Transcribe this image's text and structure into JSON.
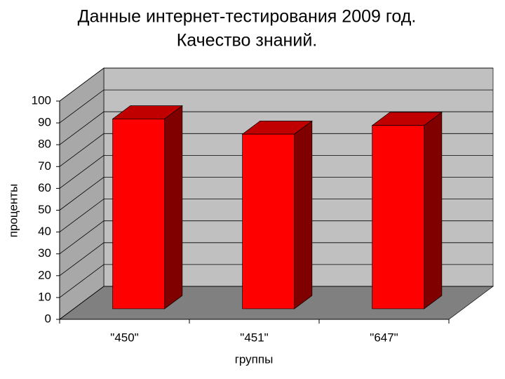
{
  "chart_data": {
    "type": "bar3d",
    "title": "Данные интернет-тестирования 2009 год.",
    "subtitle": "Качество знаний.",
    "y_label": "проценты",
    "x_label": "группы",
    "categories": [
      "\"450\"",
      "\"451\"",
      "\"647\""
    ],
    "values": [
      87,
      80,
      84
    ],
    "color": "#ff0000",
    "ylim": [
      0,
      100
    ],
    "yticks": [
      0,
      10,
      20,
      30,
      40,
      50,
      60,
      70,
      80,
      90,
      100
    ],
    "grid": true
  }
}
